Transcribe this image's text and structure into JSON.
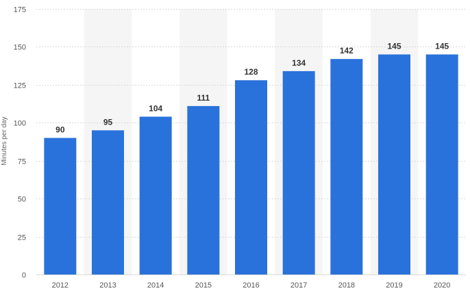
{
  "chart_data": {
    "type": "bar",
    "categories": [
      "2012",
      "2013",
      "2014",
      "2015",
      "2016",
      "2017",
      "2018",
      "2019",
      "2020"
    ],
    "values": [
      90,
      95,
      104,
      111,
      128,
      134,
      142,
      145,
      145
    ],
    "data_labels": [
      "90",
      "95",
      "104",
      "111",
      "128",
      "134",
      "142",
      "145",
      "145"
    ],
    "ylabel": "Minutes per day",
    "ylim": [
      0,
      175
    ],
    "yticks": [
      0,
      25,
      50,
      75,
      100,
      125,
      150,
      175
    ],
    "ytick_labels": [
      "0",
      "25",
      "50",
      "75",
      "100",
      "125",
      "150",
      "175"
    ],
    "grid": true,
    "alternating_column_bands": true,
    "bar_color": "#2a72db",
    "band_color": "#f5f5f5",
    "grid_color": "#d9d9d9"
  }
}
